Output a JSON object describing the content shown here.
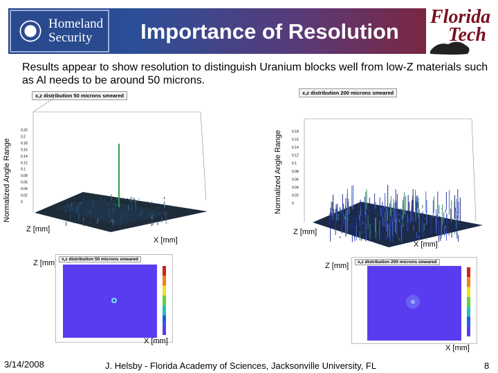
{
  "header": {
    "title": "Importance of Resolution",
    "left_logo_text_line1": "Homeland",
    "left_logo_text_line2": "Security",
    "right_logo_text_line1": "Florida",
    "right_logo_text_line2": "Tech"
  },
  "subtitle": "Results appear to show resolution to distinguish Uranium blocks well from low-Z materials such as Al needs to be around 50 microns.",
  "plots_3d": [
    {
      "title": "x,z distribution 50 microns smeared",
      "z_ticks": [
        "0.22",
        "0.2",
        "0.18",
        "0.16",
        "0.14",
        "0.12",
        "0.1",
        "0.08",
        "0.06",
        "0.04",
        "0.02",
        "0"
      ],
      "y_axis_label": "Normalized Angle Range",
      "z_label": "Z [mm]",
      "x_label": "X [mm]"
    },
    {
      "title": "x,z distribution 200 microns smeared",
      "z_ticks": [
        "0.18",
        "0.16",
        "0.14",
        "0.12",
        "0.1",
        "0.08",
        "0.06",
        "0.04",
        "0.02",
        "0"
      ],
      "y_axis_label": "Normalized Angle Range",
      "z_label": "Z [mm]",
      "x_label": "X [mm]"
    }
  ],
  "maps_2d": [
    {
      "title": "x,z distribution 50 microns smeared",
      "z_label": "Z [mm]",
      "x_label": "X [mm]"
    },
    {
      "title": "x,z distribution 200 microns smeared",
      "z_label": "Z [mm]",
      "x_label": "X [mm]"
    }
  ],
  "footer": {
    "date": "3/14/2008",
    "credit": "J. Helsby - Florida Academy of Sciences, Jacksonville University, FL",
    "page": "8"
  },
  "colors": {
    "banner_left": "#1f3f86",
    "banner_right": "#7a2742",
    "map_fill": "#5a3cf0",
    "logo_red": "#7a1020"
  }
}
